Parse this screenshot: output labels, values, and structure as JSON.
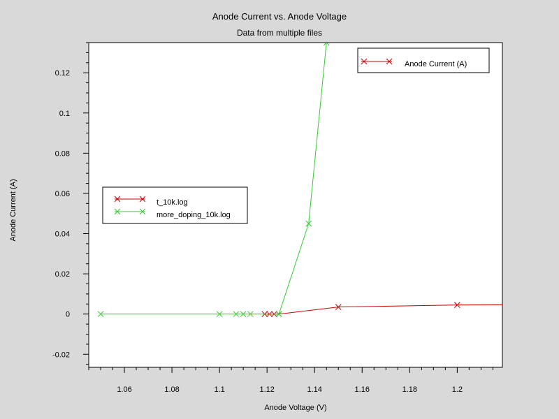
{
  "chart_data": {
    "type": "line",
    "title": "Anode Current vs. Anode Voltage",
    "subtitle": "Data from multiple files",
    "xlabel": "Anode Voltage (V)",
    "ylabel": "Anode Current (A)",
    "xlim": [
      1.045,
      1.219
    ],
    "ylim": [
      -0.0265,
      0.135
    ],
    "xticks": [
      1.06,
      1.08,
      1.1,
      1.12,
      1.14,
      1.16,
      1.18,
      1.2
    ],
    "xtick_labels": [
      "1.06",
      "1.08",
      "1.1",
      "1.12",
      "1.14",
      "1.16",
      "1.18",
      "1.2"
    ],
    "yticks": [
      -0.02,
      0,
      0.02,
      0.04,
      0.06,
      0.08,
      0.1,
      0.12
    ],
    "ytick_labels": [
      "-0.02",
      "0",
      "0.02",
      "0.04",
      "0.06",
      "0.08",
      "0.1",
      "0.12"
    ],
    "grid": false,
    "series": [
      {
        "name": "t_10k.log",
        "color": "#cc0000",
        "marker": "x",
        "x": [
          1.119,
          1.121,
          1.123,
          1.125,
          1.15,
          1.2,
          1.22
        ],
        "y": [
          0,
          0,
          0,
          0,
          0.0035,
          0.0045,
          0.0046
        ]
      },
      {
        "name": "more_doping_10k.log",
        "color": "#33cc33",
        "marker": "x",
        "x": [
          1.05,
          1.1,
          1.107,
          1.11,
          1.113,
          1.125,
          1.1375,
          1.145
        ],
        "y": [
          0,
          0,
          0,
          0,
          0,
          0,
          0.045,
          0.135
        ]
      }
    ],
    "legends": [
      {
        "placement": "top-right",
        "entries": [
          {
            "label": "Anode Current (A)",
            "color": "#cc0000"
          }
        ]
      },
      {
        "placement": "center-left",
        "entries": [
          {
            "label": "t_10k.log",
            "color": "#cc0000"
          },
          {
            "label": "more_doping_10k.log",
            "color": "#33cc33"
          }
        ]
      }
    ]
  }
}
